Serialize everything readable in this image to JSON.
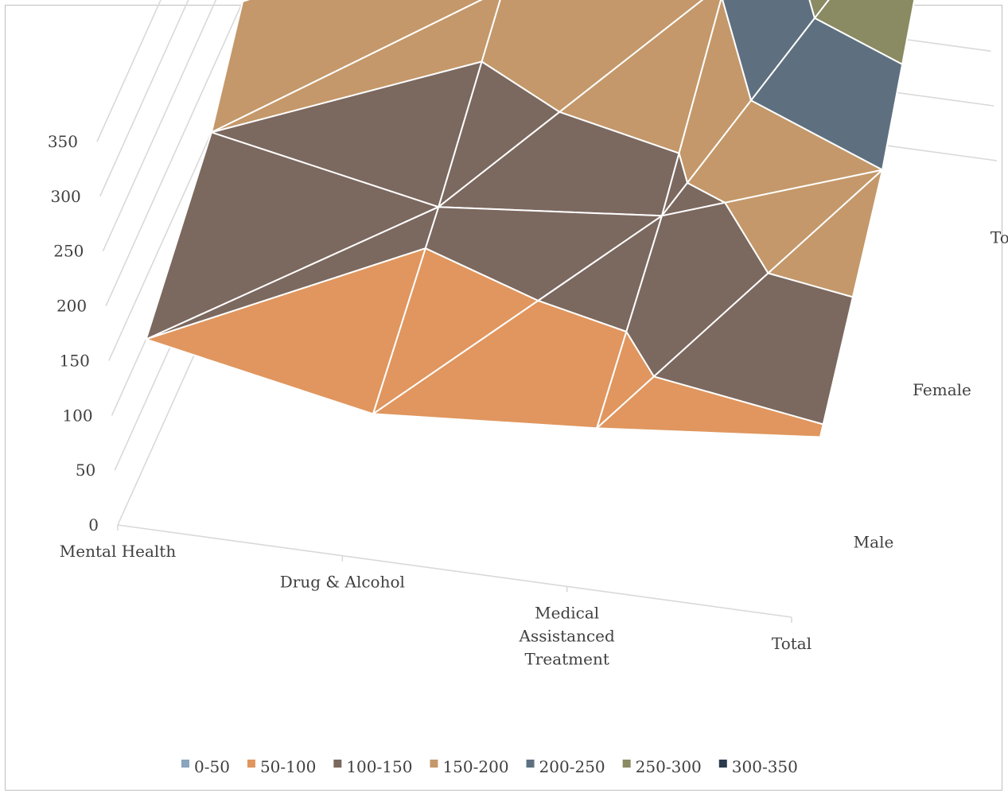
{
  "chart_data": {
    "type": "surface",
    "title": "",
    "categories": [
      "Mental Health",
      "Drug & Alcohol",
      "Medical Assistanced Treatment",
      "Total"
    ],
    "series": [
      {
        "name": "Male",
        "values": [
          100,
          60,
          75,
          95
        ]
      },
      {
        "name": "Female",
        "values": [
          150,
          110,
          130,
          200
        ]
      },
      {
        "name": "Total",
        "values": [
          250,
          170,
          205,
          350
        ]
      }
    ],
    "zlim": [
      0,
      350
    ],
    "z_ticks": [
      "0",
      "50",
      "100",
      "150",
      "200",
      "250",
      "300",
      "350"
    ],
    "legend_position": "bottom",
    "legend": [
      {
        "label": "0-50",
        "color": "#8aa5be"
      },
      {
        "label": "50-100",
        "color": "#e0965e"
      },
      {
        "label": "100-150",
        "color": "#7b685f"
      },
      {
        "label": "150-200",
        "color": "#c4986a"
      },
      {
        "label": "200-250",
        "color": "#5e7080"
      },
      {
        "label": "250-300",
        "color": "#8a8a63"
      },
      {
        "label": "300-350",
        "color": "#2b3a4c"
      }
    ]
  }
}
